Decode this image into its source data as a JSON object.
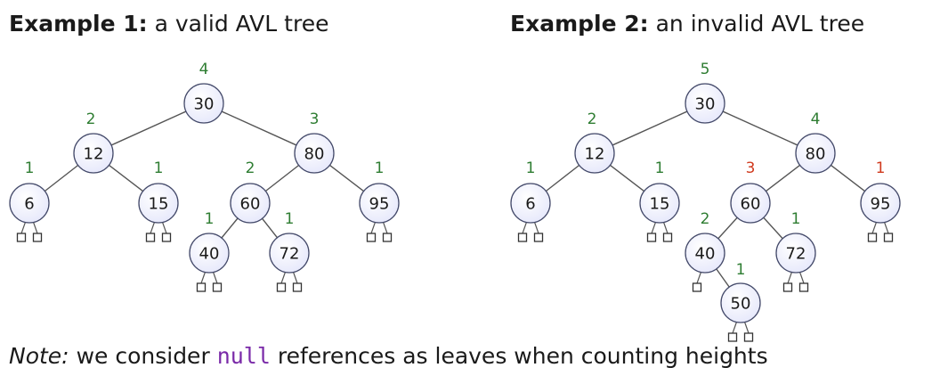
{
  "colors": {
    "node_fill": "#e6e8fb",
    "node_stroke": "#444a6a",
    "edge": "#555555",
    "height_valid": "#2e7d32",
    "height_invalid": "#d03a1e",
    "null_code": "#7a2aa8"
  },
  "examples": [
    {
      "title_bold": "Example 1:",
      "title_text": "a valid AVL tree",
      "nodes": [
        {
          "id": "n30",
          "key": "30",
          "height": "4",
          "status": "ok"
        },
        {
          "id": "n12",
          "key": "12",
          "height": "2",
          "status": "ok"
        },
        {
          "id": "n80",
          "key": "80",
          "height": "3",
          "status": "ok"
        },
        {
          "id": "n6",
          "key": "6",
          "height": "1",
          "status": "ok"
        },
        {
          "id": "n15",
          "key": "15",
          "height": "1",
          "status": "ok"
        },
        {
          "id": "n60",
          "key": "60",
          "height": "2",
          "status": "ok"
        },
        {
          "id": "n95",
          "key": "95",
          "height": "1",
          "status": "ok"
        },
        {
          "id": "n40",
          "key": "40",
          "height": "1",
          "status": "ok"
        },
        {
          "id": "n72",
          "key": "72",
          "height": "1",
          "status": "ok"
        }
      ],
      "edges": [
        [
          "n30",
          "n12"
        ],
        [
          "n30",
          "n80"
        ],
        [
          "n12",
          "n6"
        ],
        [
          "n12",
          "n15"
        ],
        [
          "n80",
          "n60"
        ],
        [
          "n80",
          "n95"
        ],
        [
          "n60",
          "n40"
        ],
        [
          "n60",
          "n72"
        ]
      ]
    },
    {
      "title_bold": "Example 2:",
      "title_text": "an invalid AVL tree",
      "nodes": [
        {
          "id": "m30",
          "key": "30",
          "height": "5",
          "status": "ok"
        },
        {
          "id": "m12",
          "key": "12",
          "height": "2",
          "status": "ok"
        },
        {
          "id": "m80",
          "key": "80",
          "height": "4",
          "status": "ok"
        },
        {
          "id": "m6",
          "key": "6",
          "height": "1",
          "status": "ok"
        },
        {
          "id": "m15",
          "key": "15",
          "height": "1",
          "status": "ok"
        },
        {
          "id": "m60",
          "key": "60",
          "height": "3",
          "status": "invalid"
        },
        {
          "id": "m95",
          "key": "95",
          "height": "1",
          "status": "invalid"
        },
        {
          "id": "m40",
          "key": "40",
          "height": "2",
          "status": "ok"
        },
        {
          "id": "m72",
          "key": "72",
          "height": "1",
          "status": "ok"
        },
        {
          "id": "m50",
          "key": "50",
          "height": "1",
          "status": "ok"
        }
      ],
      "edges": [
        [
          "m30",
          "m12"
        ],
        [
          "m30",
          "m80"
        ],
        [
          "m12",
          "m6"
        ],
        [
          "m12",
          "m15"
        ],
        [
          "m80",
          "m60"
        ],
        [
          "m80",
          "m95"
        ],
        [
          "m60",
          "m40"
        ],
        [
          "m60",
          "m72"
        ],
        [
          "m40",
          "m50"
        ]
      ]
    }
  ],
  "note": {
    "italic": "Note:",
    "before": "we consider",
    "code": "null",
    "after": "references as leaves when counting heights"
  }
}
